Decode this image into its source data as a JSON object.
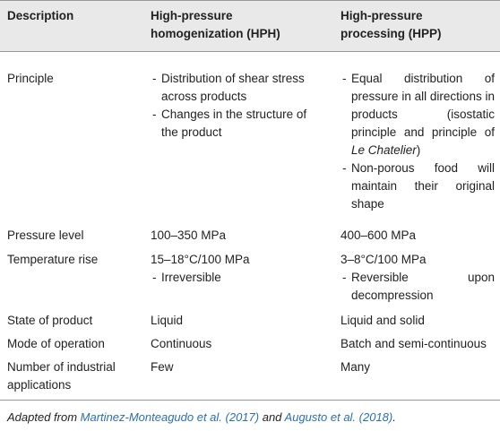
{
  "header": {
    "columns": [
      "Description",
      "High-pressure homogenization (HPH)",
      "High-pressure processing (HPP)"
    ]
  },
  "table": {
    "rows": [
      {
        "label": "Principle",
        "hph": {
          "items": [
            "Distribution of shear stress across products",
            "Changes in the structure of the product"
          ]
        },
        "hpp": {
          "items": [
            [
              "Equal distribution of pressure in all directions in products (isostatic principle and principle of ",
              "Le Chatelier",
              ")"
            ],
            [
              "Non-porous food will maintain their original shape"
            ]
          ]
        }
      },
      {
        "label": "Pressure level",
        "hph": {
          "text": "100–350 MPa"
        },
        "hpp": {
          "text": "400–600 MPa"
        }
      },
      {
        "label": "Temperature rise",
        "hph": {
          "text": "15–18°C/100 MPa",
          "items": [
            "Irreversible"
          ]
        },
        "hpp": {
          "text": "3–8°C/100 MPa",
          "items": [
            [
              "Reversible upon decompression"
            ]
          ]
        }
      },
      {
        "label": "State of product",
        "hph": {
          "text": "Liquid"
        },
        "hpp": {
          "text": "Liquid and solid"
        }
      },
      {
        "label": "Mode of operation",
        "hph": {
          "text": "Continuous"
        },
        "hpp": {
          "text": "Batch and semi-continuous"
        }
      },
      {
        "label": "Number of industrial applications",
        "hph": {
          "text": "Few"
        },
        "hpp": {
          "text": "Many"
        }
      }
    ]
  },
  "footnote": [
    "Adapted from ",
    "Martinez-Monteagudo et al. (2017)",
    " and ",
    "Augusto et al. (2018)",
    "."
  ]
}
